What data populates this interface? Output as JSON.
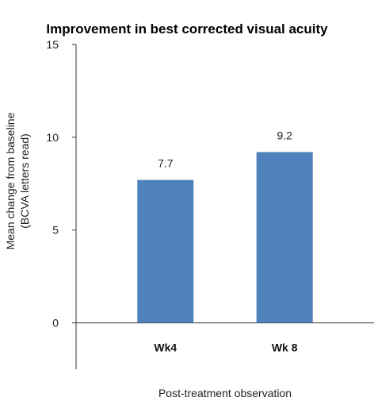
{
  "chart_data": {
    "type": "bar",
    "title": "Improvement in best corrected visual acuity",
    "xlabel": "Post-treatment observation",
    "ylabel_lines": [
      "Mean change from baseline",
      "(BCVA letters read)"
    ],
    "categories": [
      "Wk4",
      "Wk 8"
    ],
    "values": [
      7.7,
      9.2
    ],
    "data_labels": [
      "7.7",
      "9.2"
    ],
    "ylim": [
      -2.5,
      15
    ],
    "yticks": [
      0,
      5,
      10,
      15
    ],
    "ytick_labels": [
      "0",
      "5",
      "10",
      "15"
    ],
    "bar_color": "#4f81bd",
    "grid": false,
    "legend": "none"
  }
}
